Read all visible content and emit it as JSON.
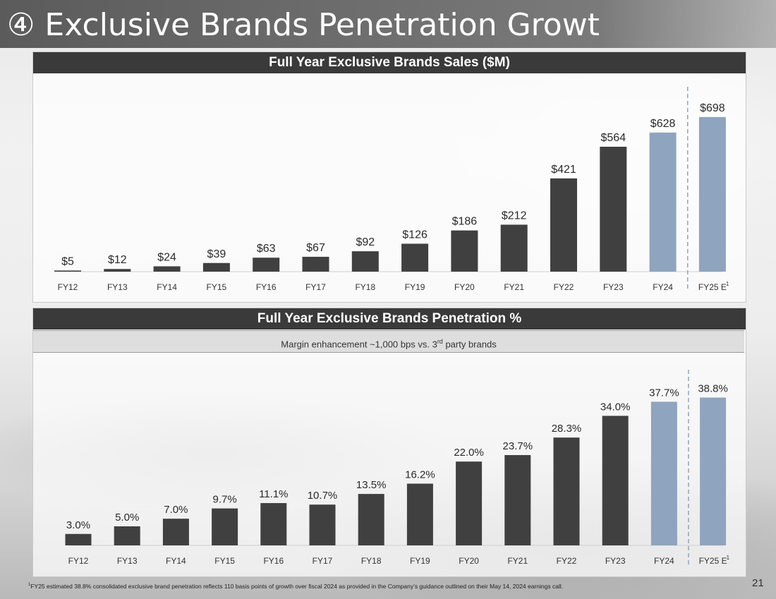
{
  "slide": {
    "title": "④ Exclusive Brands Penetration Growth",
    "page_number": "21",
    "footnote_marker": "1",
    "footnote_text": "FY25 estimated 38.8% consolidated exclusive brand penetration reflects 110 basis points of growth over fiscal 2024 as provided in the Company’s guidance outlined on their May 14, 2024 earnings call."
  },
  "colors": {
    "actual_bar": "#404040",
    "highlight_bar": "#8fa4be",
    "divider": "#8fa4be"
  },
  "sales_panel": {
    "header": "Full Year Exclusive Brands Sales ($M)"
  },
  "penetration_panel": {
    "header": "Full Year Exclusive Brands Penetration %",
    "subheader_prefix": "Margin enhancement ~1,000 bps vs. 3",
    "subheader_sup": "rd",
    "subheader_suffix": " party brands"
  },
  "chart_data": [
    {
      "type": "bar",
      "title": "Full Year Exclusive Brands Sales ($M)",
      "categories": [
        "FY12",
        "FY13",
        "FY14",
        "FY15",
        "FY16",
        "FY17",
        "FY18",
        "FY19",
        "FY20",
        "FY21",
        "FY22",
        "FY23",
        "FY24",
        "FY25 E"
      ],
      "category_footnotes": [
        "",
        "",
        "",
        "",
        "",
        "",
        "",
        "",
        "",
        "",
        "",
        "",
        "",
        "1"
      ],
      "values": [
        5,
        12,
        24,
        39,
        63,
        67,
        92,
        126,
        186,
        212,
        421,
        564,
        628,
        698
      ],
      "data_labels": [
        "$5",
        "$12",
        "$24",
        "$39",
        "$63",
        "$67",
        "$92",
        "$126",
        "$186",
        "$212",
        "$421",
        "$564",
        "$628",
        "$698"
      ],
      "highlighted": [
        false,
        false,
        false,
        false,
        false,
        false,
        false,
        false,
        false,
        false,
        false,
        false,
        true,
        true
      ],
      "ylim": [
        0,
        720
      ],
      "xlabel": "",
      "ylabel": "",
      "grid": false
    },
    {
      "type": "bar",
      "title": "Full Year Exclusive Brands Penetration %",
      "categories": [
        "FY12",
        "FY13",
        "FY14",
        "FY15",
        "FY16",
        "FY17",
        "FY18",
        "FY19",
        "FY20",
        "FY21",
        "FY22",
        "FY23",
        "FY24",
        "FY25 E"
      ],
      "category_footnotes": [
        "",
        "",
        "",
        "",
        "",
        "",
        "",
        "",
        "",
        "",
        "",
        "",
        "",
        "1"
      ],
      "values": [
        3.0,
        5.0,
        7.0,
        9.7,
        11.1,
        10.7,
        13.5,
        16.2,
        22.0,
        23.7,
        28.3,
        34.0,
        37.7,
        38.8
      ],
      "data_labels": [
        "3.0%",
        "5.0%",
        "7.0%",
        "9.7%",
        "11.1%",
        "10.7%",
        "13.5%",
        "16.2%",
        "22.0%",
        "23.7%",
        "28.3%",
        "34.0%",
        "37.7%",
        "38.8%"
      ],
      "highlighted": [
        false,
        false,
        false,
        false,
        false,
        false,
        false,
        false,
        false,
        false,
        false,
        false,
        true,
        true
      ],
      "ylim": [
        0,
        40
      ],
      "xlabel": "",
      "ylabel": "",
      "grid": false
    }
  ]
}
